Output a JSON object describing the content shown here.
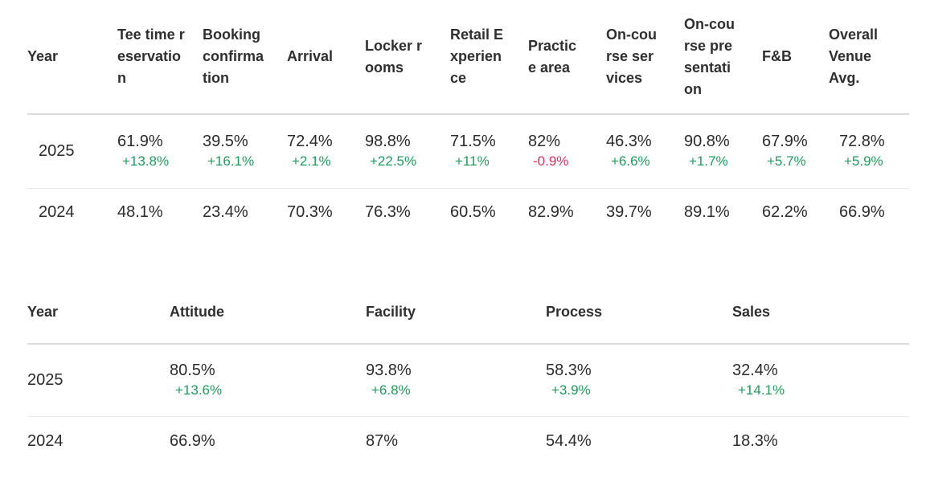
{
  "table1": {
    "headers": [
      "Year",
      "Tee time reservation",
      "Booking confirmation",
      "Arrival",
      "Locker rooms",
      "Retail Experience",
      "Practice area",
      "On-course services",
      "On-course presentation",
      "F&B",
      "Overall Venue Avg."
    ],
    "rows": [
      {
        "year": "2025",
        "cells": [
          {
            "value": "61.9%",
            "delta": "+13.8%",
            "trend": "up"
          },
          {
            "value": "39.5%",
            "delta": "+16.1%",
            "trend": "up"
          },
          {
            "value": "72.4%",
            "delta": "+2.1%",
            "trend": "up"
          },
          {
            "value": "98.8%",
            "delta": "+22.5%",
            "trend": "up"
          },
          {
            "value": "71.5%",
            "delta": "+11%",
            "trend": "up"
          },
          {
            "value": "82%",
            "delta": "-0.9%",
            "trend": "down"
          },
          {
            "value": "46.3%",
            "delta": "+6.6%",
            "trend": "up"
          },
          {
            "value": "90.8%",
            "delta": "+1.7%",
            "trend": "up"
          },
          {
            "value": "67.9%",
            "delta": "+5.7%",
            "trend": "up"
          },
          {
            "value": "72.8%",
            "delta": "+5.9%",
            "trend": "up"
          }
        ]
      },
      {
        "year": "2024",
        "cells": [
          {
            "value": "48.1%"
          },
          {
            "value": "23.4%"
          },
          {
            "value": "70.3%"
          },
          {
            "value": "76.3%"
          },
          {
            "value": "60.5%"
          },
          {
            "value": "82.9%"
          },
          {
            "value": "39.7%"
          },
          {
            "value": "89.1%"
          },
          {
            "value": "62.2%"
          },
          {
            "value": "66.9%"
          }
        ]
      }
    ]
  },
  "table2": {
    "headers": [
      "Year",
      "Attitude",
      "Facility",
      "Process",
      "Sales"
    ],
    "rows": [
      {
        "year": "2025",
        "cells": [
          {
            "value": "80.5%",
            "delta": "+13.6%",
            "trend": "up"
          },
          {
            "value": "93.8%",
            "delta": "+6.8%",
            "trend": "up"
          },
          {
            "value": "58.3%",
            "delta": "+3.9%",
            "trend": "up"
          },
          {
            "value": "32.4%",
            "delta": "+14.1%",
            "trend": "up"
          }
        ]
      },
      {
        "year": "2024",
        "cells": [
          {
            "value": "66.9%"
          },
          {
            "value": "87%"
          },
          {
            "value": "54.4%"
          },
          {
            "value": "18.3%"
          }
        ]
      }
    ]
  },
  "colors": {
    "positive": "#1f9a5c",
    "negative": "#d6335b",
    "divider": "#dcdcdc"
  }
}
